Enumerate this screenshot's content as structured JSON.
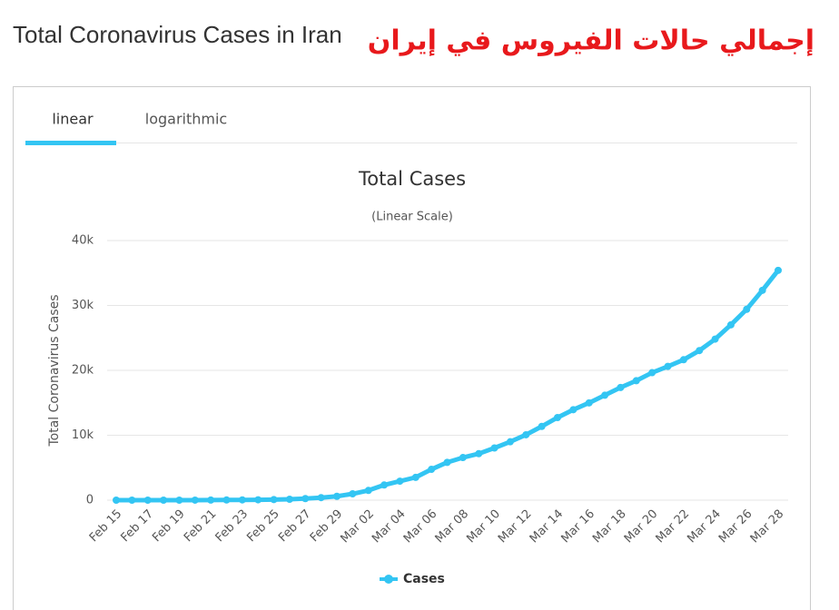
{
  "header": {
    "title": "Total Coronavirus Cases in Iran",
    "title_ar": "إجمالي حالات الفيروس في إيران"
  },
  "tabs": [
    "linear",
    "logarithmic"
  ],
  "chart_data": {
    "type": "line",
    "title": "Total Cases",
    "subtitle": "(Linear Scale)",
    "y_label": "Total Coronavirus Cases",
    "categories": [
      "Feb 15",
      null,
      "Feb 17",
      null,
      "Feb 19",
      null,
      "Feb 21",
      null,
      "Feb 23",
      null,
      "Feb 25",
      null,
      "Feb 27",
      null,
      "Feb 29",
      null,
      "Mar 02",
      null,
      "Mar 04",
      null,
      "Mar 06",
      null,
      "Mar 08",
      null,
      "Mar 10",
      null,
      "Mar 12",
      null,
      "Mar 14",
      null,
      "Mar 16",
      null,
      "Mar 18",
      null,
      "Mar 20",
      null,
      "Mar 22",
      null,
      "Mar 24",
      null,
      "Mar 26",
      null,
      "Mar 28"
    ],
    "series": [
      {
        "name": "Cases",
        "color": "#33c5f3",
        "values": [
          0,
          0,
          0,
          0,
          2,
          5,
          18,
          28,
          43,
          61,
          95,
          139,
          245,
          388,
          593,
          978,
          1501,
          2336,
          2922,
          3513,
          4747,
          5823,
          6566,
          7161,
          8042,
          9000,
          10075,
          11364,
          12729,
          13938,
          14991,
          16169,
          17361,
          18407,
          19644,
          20610,
          21638,
          23049,
          24811,
          27017,
          29406,
          32332,
          35408
        ]
      }
    ],
    "ylim": [
      0,
      40000
    ],
    "yticks": [
      0,
      {
        "value": 10000,
        "label": "10k"
      },
      {
        "value": 20000,
        "label": "20k"
      },
      {
        "value": 30000,
        "label": "30k"
      },
      {
        "value": 40000,
        "label": "40k"
      }
    ],
    "grid": true
  }
}
